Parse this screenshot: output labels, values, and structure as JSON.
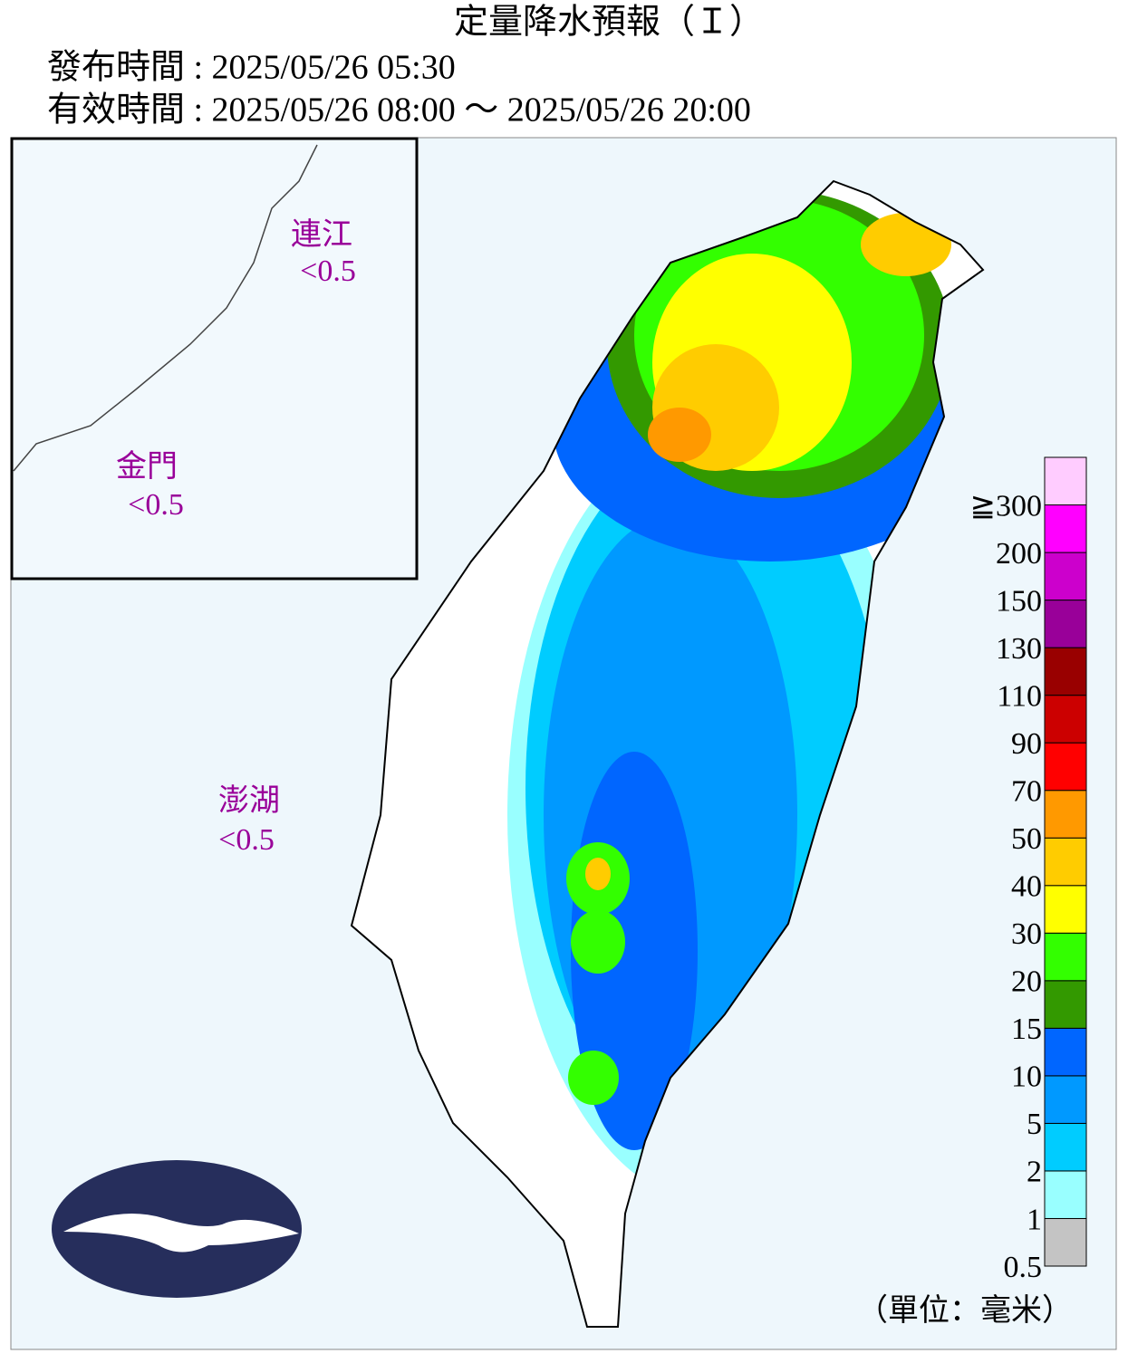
{
  "header": {
    "title": "定量降水預報（Ｉ）",
    "issued": "發布時間 : 2025/05/26 05:30",
    "valid": "有效時間 : 2025/05/26 08:00 ～ 2025/05/26 20:00"
  },
  "islands": [
    {
      "name": "連江",
      "value": "<0.5"
    },
    {
      "name": "金門",
      "value": "<0.5"
    },
    {
      "name": "澎湖",
      "value": "<0.5"
    }
  ],
  "legend": {
    "labels": [
      "0.5",
      "1",
      "2",
      "5",
      "10",
      "15",
      "20",
      "30",
      "40",
      "50",
      "70",
      "90",
      "110",
      "130",
      "150",
      "200",
      "≧300"
    ],
    "colors": [
      "#c4c4c4",
      "#99ffff",
      "#00ccff",
      "#0099ff",
      "#0066ff",
      "#339900",
      "#33ff00",
      "#ffff00",
      "#ffcc00",
      "#ff9900",
      "#ff0000",
      "#cc0000",
      "#990000",
      "#990099",
      "#cc00cc",
      "#ff00ff",
      "#ffccff"
    ],
    "unit": "（單位：毫米）"
  }
}
